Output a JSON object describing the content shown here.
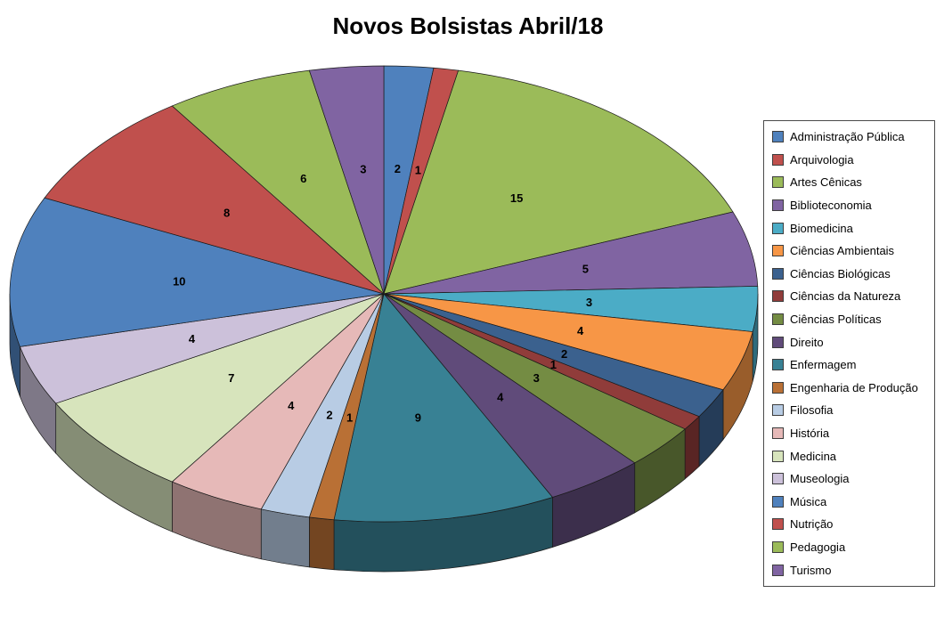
{
  "page": {
    "background": "#FFFFFF"
  },
  "chart_data": {
    "type": "pie",
    "style": "3d",
    "title": "Novos Bolsistas Abril/18",
    "legend_position": "right",
    "start_angle_deg": 0,
    "direction": "clockwise",
    "data_labels": "value",
    "total": 94,
    "categories": [
      "Administração Pública",
      "Arquivologia",
      "Artes Cênicas",
      "Biblioteconomia",
      "Biomedicina",
      "Ciências Ambientais",
      "Ciências Biológicas",
      "Ciências da Natureza",
      "Ciências Políticas",
      "Direito",
      "Enfermagem",
      "Engenharia de Produção",
      "Filosofia",
      "História",
      "Medicina",
      "Museologia",
      "Música",
      "Nutrição",
      "Pedagogia",
      "Turismo"
    ],
    "values": [
      2,
      1,
      15,
      5,
      3,
      4,
      2,
      1,
      3,
      4,
      9,
      1,
      2,
      4,
      7,
      4,
      10,
      8,
      6,
      3
    ],
    "colors": [
      "#4F81BD",
      "#C0504D",
      "#9BBB59",
      "#8064A2",
      "#4BACC6",
      "#F79646",
      "#3B618E",
      "#903C3A",
      "#748C43",
      "#604B7A",
      "#388194",
      "#B97035",
      "#B8CCE4",
      "#E6B9B8",
      "#D7E4BC",
      "#CCC1DA",
      "#4F81BD",
      "#C0504D",
      "#9BBB59",
      "#8064A2"
    ]
  }
}
